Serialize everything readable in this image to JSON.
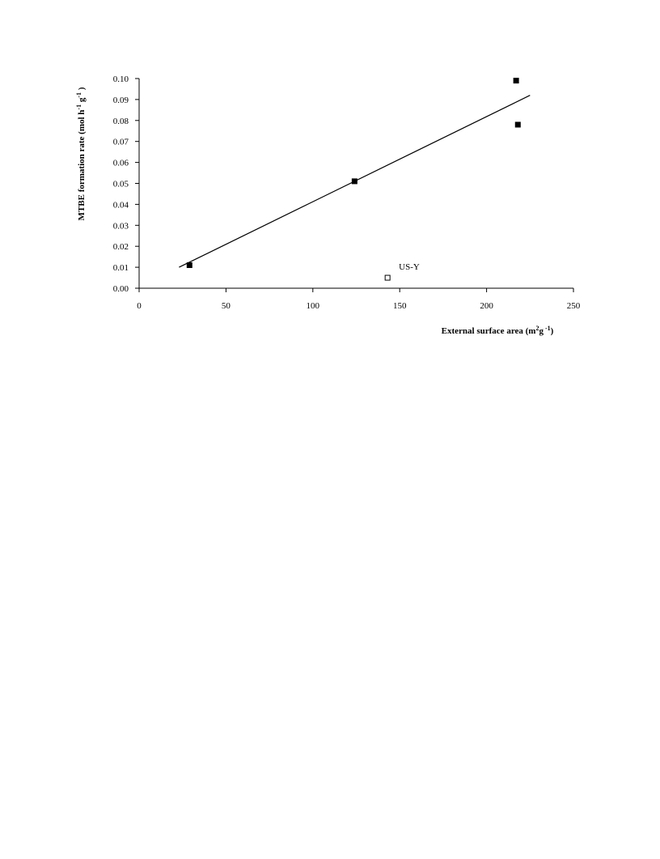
{
  "chart_data": {
    "type": "scatter",
    "x_label": [
      {
        "text": "External surface area (m"
      },
      {
        "text": "2",
        "sup": true
      },
      {
        "text": "g"
      },
      {
        "text": " -1",
        "sup": true
      },
      {
        "text": ")"
      }
    ],
    "y_label": [
      {
        "text": "MTBE formation rate (mol h"
      },
      {
        "text": "-1",
        "sup": true
      },
      {
        "text": " g"
      },
      {
        "text": "-1",
        "sup": true
      },
      {
        "text": " )"
      }
    ],
    "series": [
      {
        "marker": "filled",
        "color": "#000000",
        "x": [
          29,
          124,
          217,
          218
        ],
        "values": [
          0.011,
          0.051,
          0.099,
          0.078
        ]
      },
      {
        "marker": "open",
        "color": "#000000",
        "x": [
          143
        ],
        "values": [
          0.005
        ],
        "annotation": "US-Y"
      }
    ],
    "fit_line": {
      "x": [
        23,
        225
      ],
      "values": [
        0.01,
        0.092
      ]
    },
    "xlim": [
      0,
      250
    ],
    "xticks": [
      0,
      50,
      100,
      150,
      200,
      250
    ],
    "ylim": [
      0,
      0.1
    ],
    "yticks": [
      {
        "value": 0,
        "label": "0.00"
      },
      {
        "value": 0.01,
        "label": "0.01"
      },
      {
        "value": 0.02,
        "label": "0.02"
      },
      {
        "value": 0.03,
        "label": "0.03"
      },
      {
        "value": 0.04,
        "label": "0.04"
      },
      {
        "value": 0.05,
        "label": "0.05"
      },
      {
        "value": 0.06,
        "label": "0.06"
      },
      {
        "value": 0.07,
        "label": "0.07"
      },
      {
        "value": 0.08,
        "label": "0.08"
      },
      {
        "value": 0.09,
        "label": "0.09"
      },
      {
        "value": 0.1,
        "label": "0.10"
      }
    ]
  }
}
